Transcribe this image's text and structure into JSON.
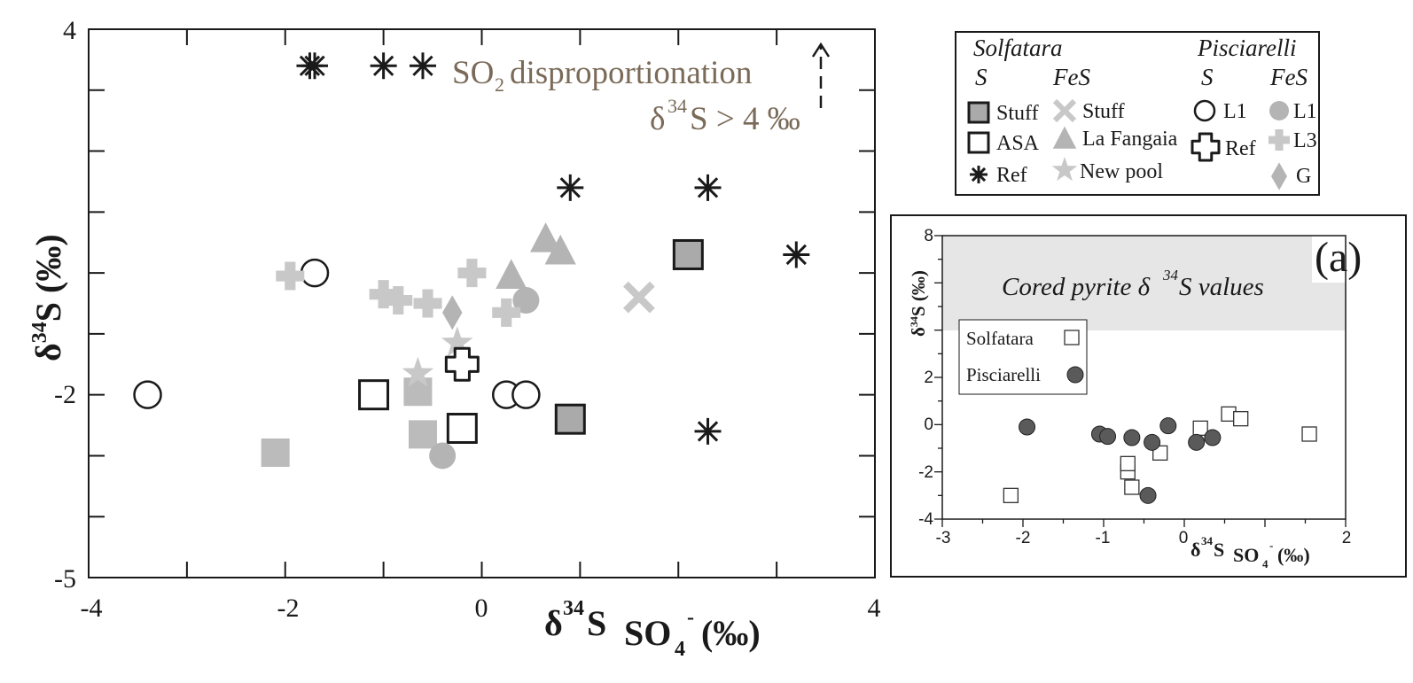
{
  "chart_data": [
    {
      "type": "scatter",
      "xlabel": "δ34S SO4- (‰)",
      "ylabel": "δ34S (‰)",
      "xlim": [
        -4,
        4
      ],
      "ylim": [
        -5,
        4
      ],
      "xticks": [
        "-4",
        "-2",
        "0",
        "4"
      ],
      "yticks": [
        "4",
        "-2",
        "-5"
      ],
      "annotation": {
        "line1": "SO2 disproportionation",
        "line2": "δ34S > 4 ‰"
      },
      "legend_headers": {
        "solfatara": "Solfatara",
        "pisciarelli": "Pisciarelli",
        "s": "S",
        "fes": "FeS"
      },
      "series": [
        {
          "name": "Stuff",
          "group": "Solfatara S",
          "marker": "square-filled",
          "color": "#aaaaaa",
          "points": [
            [
              2.1,
              0.3
            ],
            [
              0.9,
              -2.4
            ]
          ]
        },
        {
          "name": "ASA",
          "group": "Solfatara S",
          "marker": "square-open",
          "color": "#1a1a1a",
          "points": [
            [
              -1.1,
              -2.0
            ],
            [
              -0.2,
              -2.55
            ]
          ]
        },
        {
          "name": "Ref",
          "group": "Solfatara S",
          "marker": "asterisk",
          "color": "#1a1a1a",
          "points": [
            [
              -1.75,
              3.4
            ],
            [
              -1.7,
              3.4
            ],
            [
              -1.0,
              3.4
            ],
            [
              -0.6,
              3.4
            ],
            [
              0.9,
              1.4
            ],
            [
              2.3,
              1.4
            ],
            [
              3.2,
              0.3
            ],
            [
              2.3,
              -2.6
            ]
          ]
        },
        {
          "name": "Stuff",
          "group": "Solfatara FeS",
          "marker": "x",
          "color": "#c8c8c8",
          "points": [
            [
              1.6,
              -0.4
            ]
          ]
        },
        {
          "name": "La Fangaia",
          "group": "Solfatara FeS",
          "marker": "triangle",
          "color": "#b4b4b4",
          "points": [
            [
              0.65,
              0.55
            ],
            [
              0.8,
              0.35
            ],
            [
              0.3,
              -0.05
            ]
          ]
        },
        {
          "name": "New pool",
          "group": "Solfatara FeS",
          "marker": "star",
          "color": "#c8c8c8",
          "points": [
            [
              -0.25,
              -1.15
            ],
            [
              -0.65,
              -1.65
            ]
          ]
        },
        {
          "name": "L1",
          "group": "Pisciarelli S",
          "marker": "circle-open",
          "color": "#1a1a1a",
          "points": [
            [
              -1.7,
              0.0
            ],
            [
              -3.4,
              -2.0
            ],
            [
              0.25,
              -2.0
            ],
            [
              0.45,
              -2.0
            ]
          ]
        },
        {
          "name": "Ref",
          "group": "Pisciarelli S",
          "marker": "cross-open",
          "color": "#1a1a1a",
          "points": [
            [
              -0.2,
              -1.5
            ]
          ]
        },
        {
          "name": "L1",
          "group": "Pisciarelli FeS",
          "marker": "circle-filled",
          "color": "#b4b4b4",
          "points": [
            [
              0.45,
              -0.45
            ],
            [
              -0.4,
              -3.0
            ]
          ]
        },
        {
          "name": "L3",
          "group": "Pisciarelli FeS",
          "marker": "plus",
          "color": "#c8c8c8",
          "points": [
            [
              -1.95,
              -0.05
            ],
            [
              -1.0,
              -0.35
            ],
            [
              -0.85,
              -0.45
            ],
            [
              -0.55,
              -0.5
            ],
            [
              -0.1,
              0.0
            ],
            [
              0.25,
              -0.65
            ]
          ]
        },
        {
          "name": "G",
          "group": "Pisciarelli FeS",
          "marker": "diamond",
          "color": "#b4b4b4",
          "points": [
            [
              -0.3,
              -0.65
            ]
          ]
        }
      ],
      "extra_points": [
        {
          "marker": "square-filled-nostroke",
          "color": "#bbbbbb",
          "points": [
            [
              -0.65,
              -1.95
            ],
            [
              -0.6,
              -2.65
            ],
            [
              -2.1,
              -2.95
            ]
          ]
        }
      ]
    },
    {
      "type": "scatter",
      "panel_label": "(a)",
      "xlabel": "δ34S SO4- (‰)",
      "ylabel": "δ34S (‰)",
      "xlim": [
        -3,
        2
      ],
      "ylim": [
        -4,
        8
      ],
      "xticks": [
        "-3",
        "-2",
        "-1",
        "0",
        "2"
      ],
      "yticks": [
        "8",
        "2",
        "0",
        "-2",
        "-4"
      ],
      "band_label": "Cored pyrite δ34S values",
      "series": [
        {
          "name": "Solfatara",
          "marker": "square-open",
          "points": [
            [
              -2.15,
              -3.0
            ],
            [
              -0.7,
              -2.0
            ],
            [
              -0.7,
              -1.65
            ],
            [
              -0.65,
              -2.65
            ],
            [
              -0.3,
              -1.2
            ],
            [
              0.2,
              -0.15
            ],
            [
              0.55,
              0.45
            ],
            [
              0.7,
              0.25
            ],
            [
              1.55,
              -0.4
            ]
          ]
        },
        {
          "name": "Pisciarelli",
          "marker": "circle-filled",
          "points": [
            [
              -1.95,
              -0.1
            ],
            [
              -1.05,
              -0.4
            ],
            [
              -0.95,
              -0.5
            ],
            [
              -0.65,
              -0.55
            ],
            [
              -0.4,
              -0.75
            ],
            [
              -0.2,
              -0.05
            ],
            [
              0.15,
              -0.75
            ],
            [
              0.35,
              -0.55
            ],
            [
              -0.45,
              -3.0
            ]
          ]
        }
      ]
    }
  ],
  "legend": {
    "solfatara_s": [
      {
        "label": "Stuff"
      },
      {
        "label": "ASA"
      },
      {
        "label": "Ref"
      }
    ],
    "solfatara_fes": [
      {
        "label": "Stuff"
      },
      {
        "label": "La Fangaia"
      },
      {
        "label": "New pool"
      }
    ],
    "pisciarelli_s": [
      {
        "label": "L1"
      },
      {
        "label": "Ref"
      }
    ],
    "pisciarelli_fes": [
      {
        "label": "L1"
      },
      {
        "label": "L3"
      },
      {
        "label": "G"
      }
    ]
  }
}
